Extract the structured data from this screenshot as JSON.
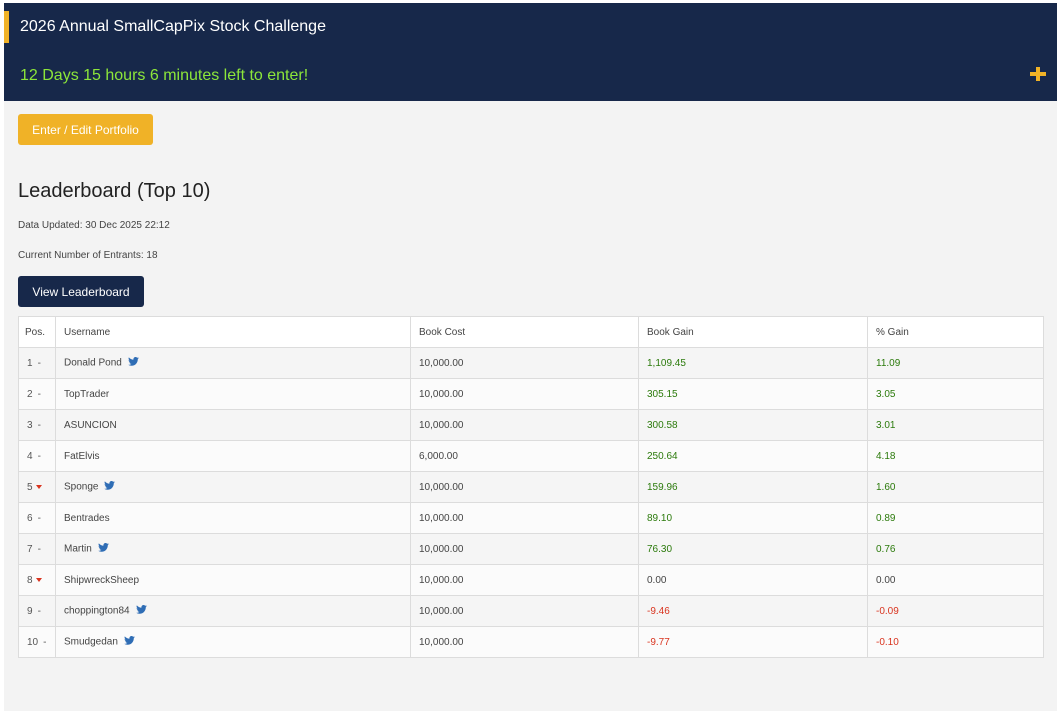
{
  "header": {
    "title": "2026 Annual SmallCapPix Stock Challenge",
    "countdown": "12 Days 15 hours 6 minutes left to enter!",
    "accent_color": "#f0b227",
    "background_color": "#17284a",
    "countdown_color": "#8ce63a",
    "expand_icon": "plus-icon"
  },
  "portfolio_button": {
    "label": "Enter / Edit Portfolio"
  },
  "leaderboard": {
    "title": "Leaderboard (Top 10)",
    "data_updated": "Data Updated: 30 Dec 2025 22:12",
    "entrants": "Current Number of Entrants: 18",
    "view_button": "View Leaderboard"
  },
  "table": {
    "headers": [
      "Pos.",
      "Username",
      "Book Cost",
      "Book Gain",
      "% Gain"
    ],
    "rows": [
      {
        "pos": "1",
        "change": "-",
        "user": "Donald Pond",
        "twitter": true,
        "cost": "10,000.00",
        "gain": "1,109.45",
        "pct": "11.09",
        "trend": "pos"
      },
      {
        "pos": "2",
        "change": "-",
        "user": "TopTrader",
        "twitter": false,
        "cost": "10,000.00",
        "gain": "305.15",
        "pct": "3.05",
        "trend": "pos"
      },
      {
        "pos": "3",
        "change": "-",
        "user": "ASUNCION",
        "twitter": false,
        "cost": "10,000.00",
        "gain": "300.58",
        "pct": "3.01",
        "trend": "pos"
      },
      {
        "pos": "4",
        "change": "-",
        "user": "FatElvis",
        "twitter": false,
        "cost": "6,000.00",
        "gain": "250.64",
        "pct": "4.18",
        "trend": "pos"
      },
      {
        "pos": "5",
        "change": "down",
        "user": "Sponge",
        "twitter": true,
        "cost": "10,000.00",
        "gain": "159.96",
        "pct": "1.60",
        "trend": "pos"
      },
      {
        "pos": "6",
        "change": "-",
        "user": "Bentrades",
        "twitter": false,
        "cost": "10,000.00",
        "gain": "89.10",
        "pct": "0.89",
        "trend": "pos"
      },
      {
        "pos": "7",
        "change": "-",
        "user": "Martin",
        "twitter": true,
        "cost": "10,000.00",
        "gain": "76.30",
        "pct": "0.76",
        "trend": "pos"
      },
      {
        "pos": "8",
        "change": "down",
        "user": "ShipwreckSheep",
        "twitter": false,
        "cost": "10,000.00",
        "gain": "0.00",
        "pct": "0.00",
        "trend": "zero"
      },
      {
        "pos": "9",
        "change": "-",
        "user": "choppington84",
        "twitter": true,
        "cost": "10,000.00",
        "gain": "-9.46",
        "pct": "-0.09",
        "trend": "neg"
      },
      {
        "pos": "10",
        "change": "-",
        "user": "Smudgedan",
        "twitter": true,
        "cost": "10,000.00",
        "gain": "-9.77",
        "pct": "-0.10",
        "trend": "neg"
      }
    ],
    "colors": {
      "positive": "#2b7a0b",
      "negative": "#d9341f",
      "twitter": "#2f6db5"
    }
  }
}
